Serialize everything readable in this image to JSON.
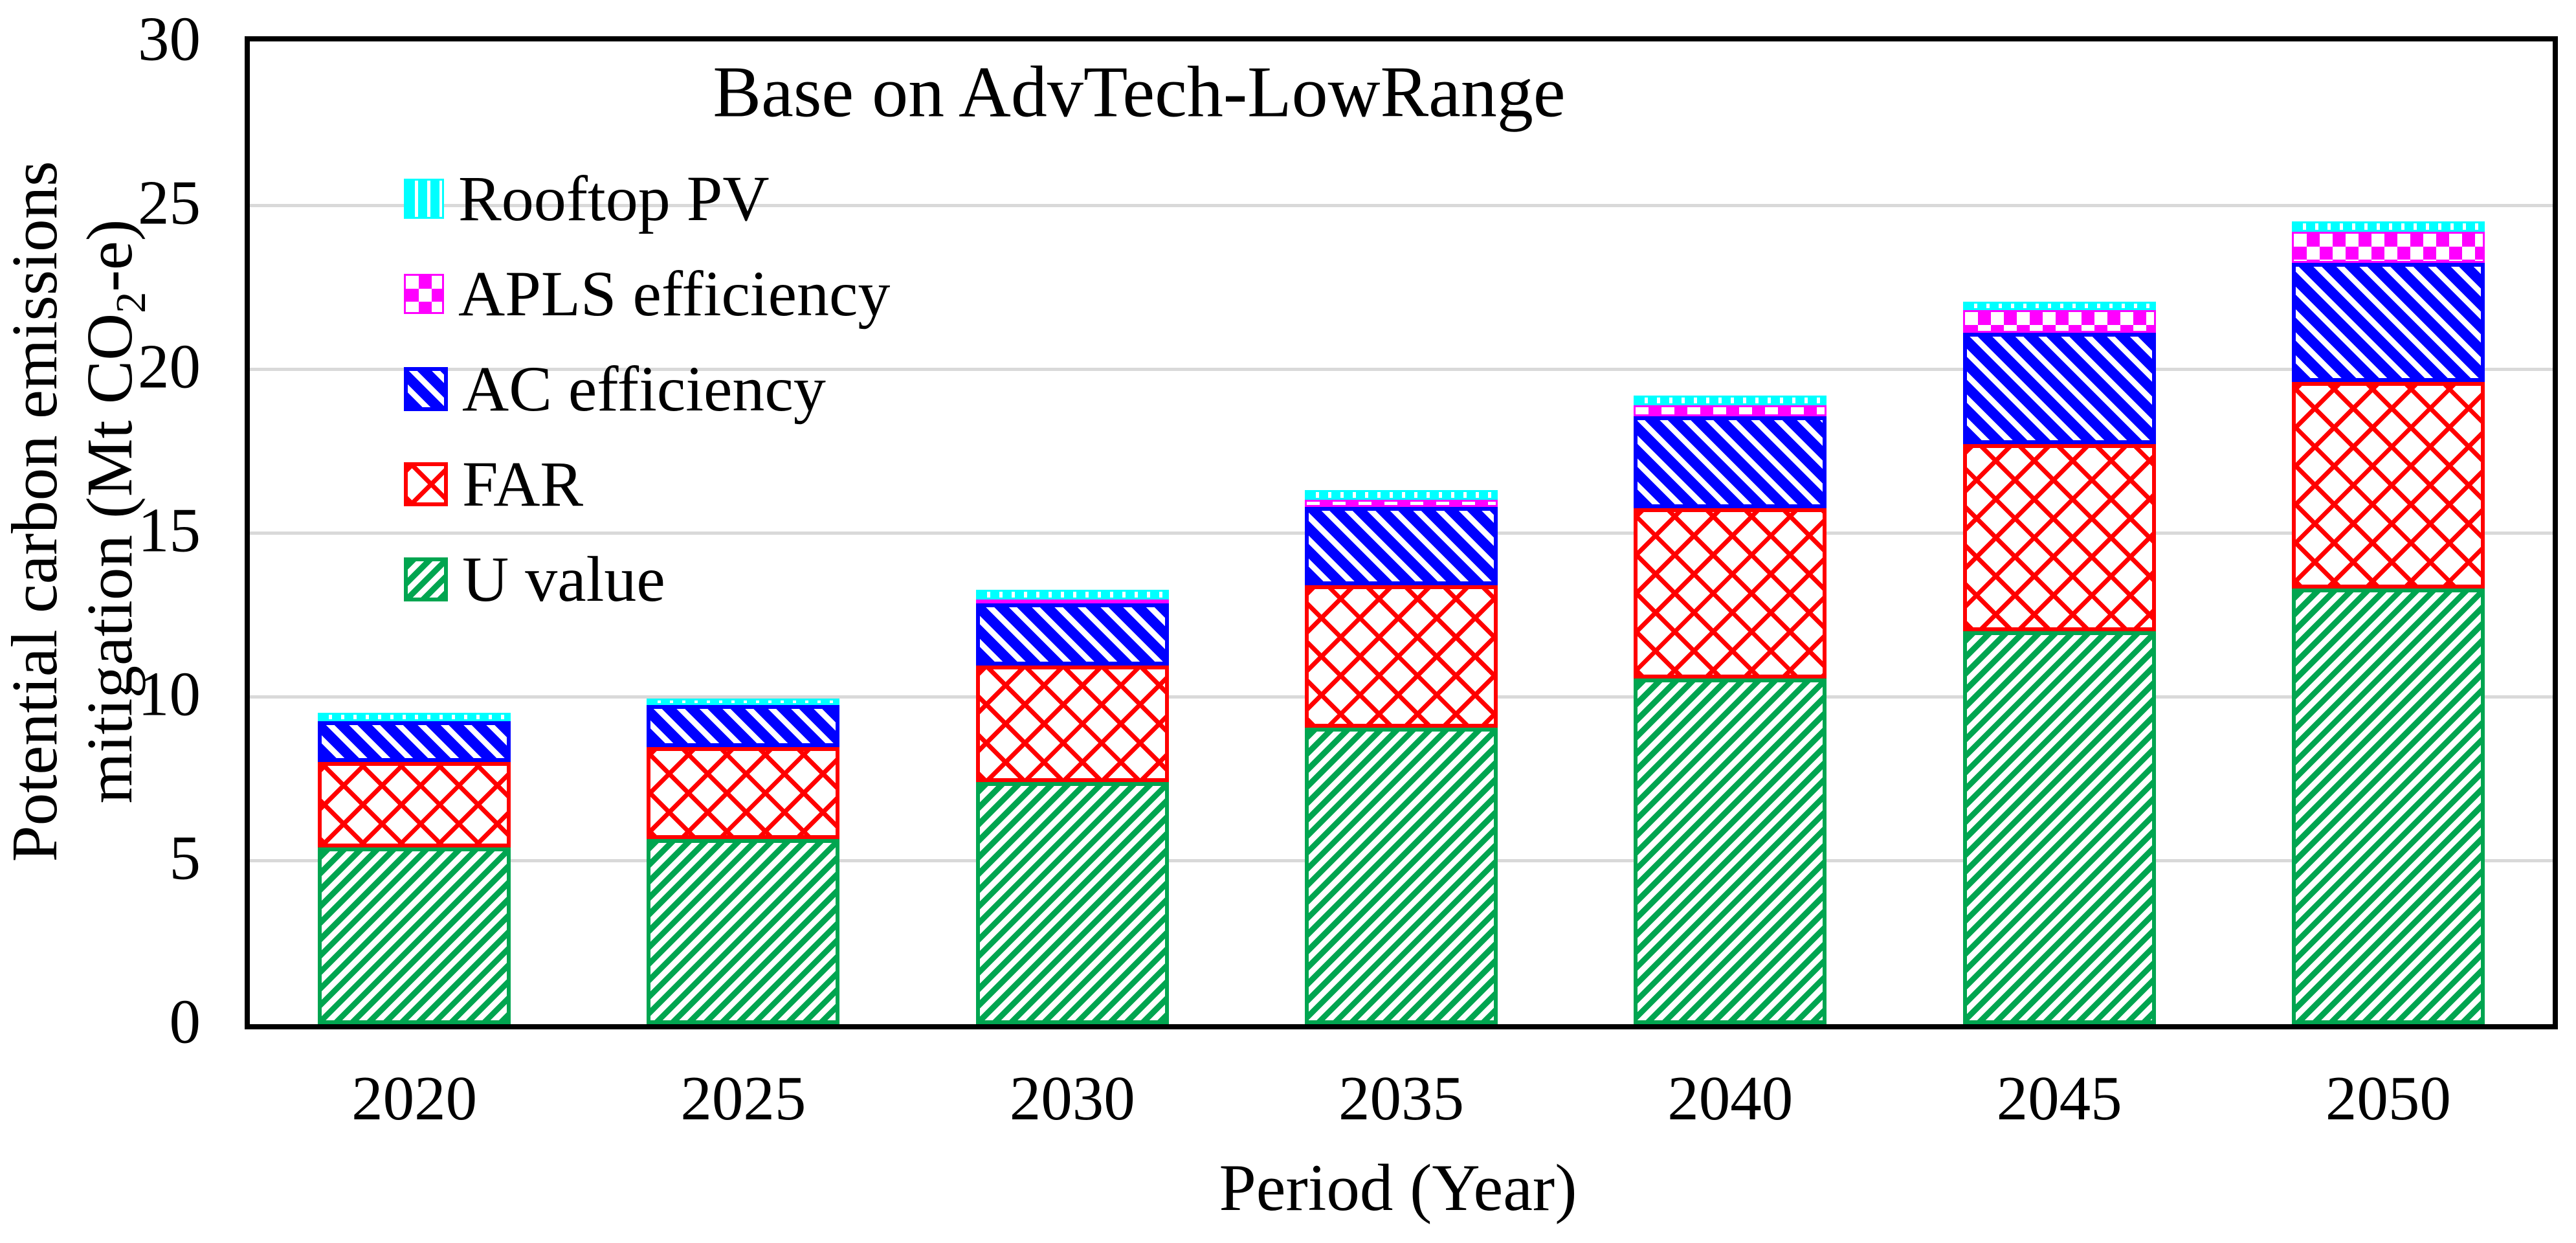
{
  "figure": {
    "title": "Base on AdvTech-LowRange"
  },
  "axes": {
    "x_title": "Period (Year)",
    "y_title_line1": "Potential carbon emissions",
    "y_title_line2_pre": "mitigation (Mt CO",
    "y_title_sub": "2",
    "y_title_line2_post": "-e)",
    "y_ticks": [
      30,
      25,
      20,
      15,
      10,
      5,
      0
    ]
  },
  "legend": {
    "items": [
      {
        "label": "Rooftop PV",
        "pattern": "pv",
        "color": "#00FFFF"
      },
      {
        "label": "APLS efficiency",
        "pattern": "apls",
        "color": "#FF00FF"
      },
      {
        "label": "AC efficiency",
        "pattern": "ac",
        "color": "#0000FF"
      },
      {
        "label": "FAR",
        "pattern": "far",
        "color": "#FF0000"
      },
      {
        "label": "U value",
        "pattern": "uvalue",
        "color": "#00A550"
      }
    ]
  },
  "chart_data": {
    "type": "bar",
    "stacked": true,
    "title": "Base on AdvTech-LowRange",
    "xlabel": "Period (Year)",
    "ylabel": "Potential carbon emissions mitigation (Mt CO2-e)",
    "categories": [
      "2020",
      "2025",
      "2030",
      "2035",
      "2040",
      "2045",
      "2050"
    ],
    "series": [
      {
        "name": "U value",
        "pattern": "uvalue",
        "color": "#00A550",
        "values": [
          5.4,
          5.65,
          7.4,
          9.05,
          10.55,
          12.0,
          13.3
        ]
      },
      {
        "name": "FAR",
        "pattern": "far",
        "color": "#FF0000",
        "values": [
          2.6,
          2.8,
          3.55,
          4.35,
          5.2,
          5.7,
          6.3
        ]
      },
      {
        "name": "AC efficiency",
        "pattern": "ac",
        "color": "#0000FF",
        "values": [
          1.25,
          1.3,
          1.9,
          2.4,
          2.8,
          3.4,
          3.65
        ]
      },
      {
        "name": "APLS efficiency",
        "pattern": "apls",
        "color": "#FF00FF",
        "values": [
          0.0,
          0.0,
          0.1,
          0.2,
          0.35,
          0.7,
          0.95
        ]
      },
      {
        "name": "Rooftop PV",
        "pattern": "pv",
        "color": "#00FFFF",
        "values": [
          0.25,
          0.2,
          0.3,
          0.3,
          0.3,
          0.25,
          0.3
        ]
      }
    ],
    "totals": [
      9.5,
      9.95,
      13.25,
      16.3,
      19.2,
      22.05,
      24.5
    ],
    "ylim": [
      0,
      30
    ],
    "y_tick_step": 5,
    "grid": "horizontal-gray",
    "gridline_color": "#d9d9d9",
    "axis_frame_color": "#000000",
    "legend_position": "upper-left-inside",
    "legend_order_top_to_bottom": [
      "Rooftop PV",
      "APLS efficiency",
      "AC efficiency",
      "FAR",
      "U value"
    ]
  }
}
